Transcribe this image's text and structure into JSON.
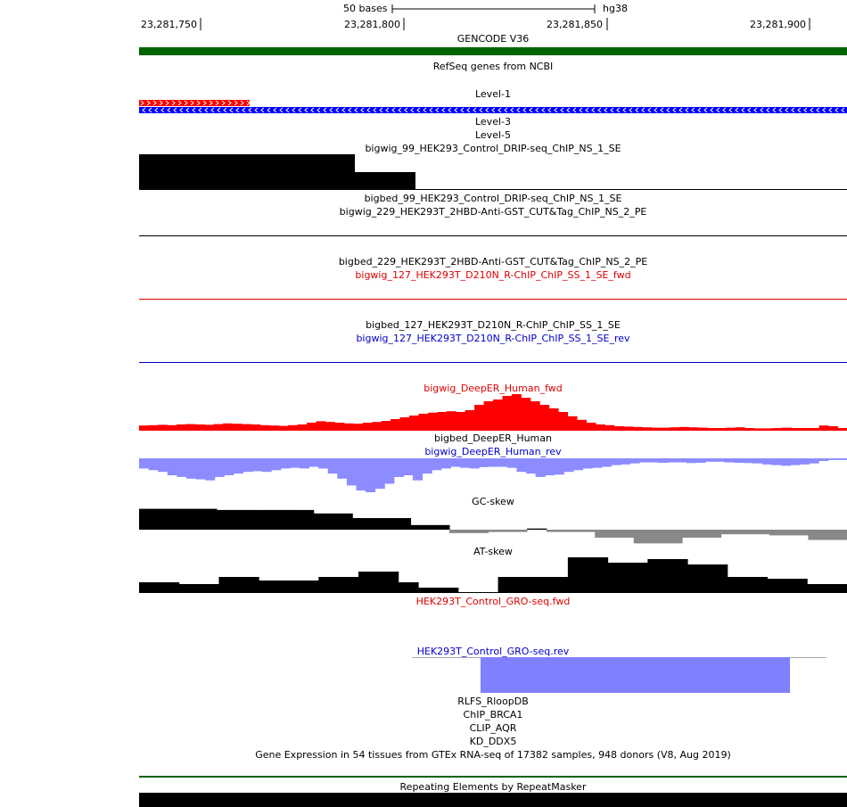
{
  "ruler": {
    "scale_label": "50 bases",
    "assembly": "hg38",
    "positions": [
      "23,281,750",
      "23,281,800",
      "23,281,850",
      "23,281,900"
    ]
  },
  "tracks": {
    "gencode": "GENCODE V36",
    "refseq": "RefSeq genes from NCBI",
    "level1": "Level-1",
    "level3": "Level-3",
    "level5": "Level-5",
    "bigwig_99": "bigwig_99_HEK293_Control_DRIP-seq_ChIP_NS_1_SE",
    "bigbed_99": "bigbed_99_HEK293_Control_DRIP-seq_ChIP_NS_1_SE",
    "bigwig_229": "bigwig_229_HEK293T_2HBD-Anti-GST_CUT&Tag_ChIP_NS_2_PE",
    "bigbed_229": "bigbed_229_HEK293T_2HBD-Anti-GST_CUT&Tag_ChIP_NS_2_PE",
    "bigwig_127_fwd": "bigwig_127_HEK293T_D210N_R-ChIP_ChIP_SS_1_SE_fwd",
    "bigbed_127": "bigbed_127_HEK293T_D210N_R-ChIP_ChIP_SS_1_SE",
    "bigwig_127_rev": "bigwig_127_HEK293T_D210N_R-ChIP_ChIP_SS_1_SE_rev",
    "deeper_fwd": "bigwig_DeepER_Human_fwd",
    "deeper_bed": "bigbed_DeepER_Human",
    "deeper_rev": "bigwig_DeepER_Human_rev",
    "gc_skew": "GC-skew",
    "at_skew": "AT-skew",
    "gro_fwd": "HEK293T_Control_GRO-seq.fwd",
    "gro_rev": "HEK293T_Control_GRO-seq.rev",
    "rlfs": "RLFS_RloopDB",
    "chip_brca1": "ChIP_BRCA1",
    "clip_aqr": "CLIP_AQR",
    "kd_ddx5": "KD_DDX5",
    "gtex": "Gene Expression in 54 tissues from GTEx RNA-seq of 17382 samples, 948 donors (V8, Aug 2019)",
    "repeatmasker": "Repeating Elements by RepeatMasker"
  },
  "colors": {
    "gencode_bar": "#006400",
    "fwd_red": "#ff0000",
    "rev_blue": "#0000cc",
    "deeper_rev_fill": "#8c8cff",
    "gc_neg_gray": "#888888",
    "gro_rev_fill": "#8080ff"
  },
  "signals": {
    "gc_skew": [
      0.9,
      0.9,
      0.9,
      0.9,
      0.9,
      0.9,
      0.9,
      0.9,
      0.85,
      0.85,
      0.85,
      0.85,
      0.85,
      0.85,
      0.85,
      0.85,
      0.85,
      0.85,
      0.7,
      0.7,
      0.7,
      0.7,
      0.5,
      0.5,
      0.5,
      0.5,
      0.5,
      0.5,
      0.2,
      0.2,
      0.2,
      0.2,
      -0.15,
      -0.15,
      -0.15,
      -0.15,
      -0.1,
      -0.1,
      -0.1,
      -0.1,
      0.05,
      0.05,
      -0.1,
      -0.1,
      -0.1,
      -0.1,
      -0.1,
      -0.35,
      -0.35,
      -0.35,
      -0.35,
      -0.6,
      -0.6,
      -0.6,
      -0.6,
      -0.6,
      -0.35,
      -0.35,
      -0.35,
      -0.35,
      -0.2,
      -0.2,
      -0.2,
      -0.2,
      -0.2,
      -0.25,
      -0.25,
      -0.25,
      -0.25,
      -0.45,
      -0.45,
      -0.45,
      -0.45
    ],
    "at_skew": [
      0.3,
      0.3,
      0.3,
      0.3,
      0.25,
      0.25,
      0.25,
      0.25,
      0.45,
      0.45,
      0.45,
      0.45,
      0.35,
      0.35,
      0.35,
      0.35,
      0.35,
      0.35,
      0.45,
      0.45,
      0.45,
      0.45,
      0.6,
      0.6,
      0.6,
      0.6,
      0.3,
      0.3,
      0.15,
      0.15,
      0.15,
      0.15,
      0.0,
      0.0,
      0.0,
      0.0,
      0.45,
      0.45,
      0.45,
      0.45,
      0.45,
      0.45,
      0.45,
      1.0,
      1.0,
      1.0,
      1.0,
      0.85,
      0.85,
      0.85,
      0.85,
      0.95,
      0.95,
      0.95,
      0.95,
      0.8,
      0.8,
      0.8,
      0.8,
      0.45,
      0.45,
      0.45,
      0.45,
      0.4,
      0.4,
      0.4,
      0.4,
      0.25,
      0.25,
      0.25,
      0.25
    ],
    "deeper_fwd": [
      0.12,
      0.13,
      0.14,
      0.13,
      0.15,
      0.16,
      0.15,
      0.14,
      0.16,
      0.18,
      0.17,
      0.16,
      0.15,
      0.13,
      0.12,
      0.11,
      0.13,
      0.15,
      0.2,
      0.24,
      0.22,
      0.2,
      0.18,
      0.17,
      0.2,
      0.22,
      0.25,
      0.3,
      0.35,
      0.4,
      0.45,
      0.48,
      0.5,
      0.52,
      0.5,
      0.55,
      0.7,
      0.8,
      0.85,
      0.95,
      1.0,
      0.9,
      0.8,
      0.7,
      0.6,
      0.5,
      0.38,
      0.28,
      0.2,
      0.15,
      0.13,
      0.1,
      0.09,
      0.08,
      0.07,
      0.06,
      0.06,
      0.07,
      0.08,
      0.07,
      0.06,
      0.05,
      0.05,
      0.06,
      0.07,
      0.05,
      0.04,
      0.04,
      0.05,
      0.06,
      0.05,
      0.05,
      0.05,
      0.12,
      0.1,
      0.05
    ],
    "deeper_rev": [
      0.3,
      0.35,
      0.4,
      0.5,
      0.55,
      0.6,
      0.62,
      0.65,
      0.55,
      0.5,
      0.45,
      0.4,
      0.38,
      0.4,
      0.35,
      0.3,
      0.28,
      0.3,
      0.25,
      0.3,
      0.45,
      0.6,
      0.8,
      0.95,
      1.0,
      0.9,
      0.75,
      0.55,
      0.5,
      0.65,
      0.45,
      0.35,
      0.3,
      0.25,
      0.28,
      0.3,
      0.26,
      0.25,
      0.25,
      0.28,
      0.4,
      0.45,
      0.55,
      0.5,
      0.48,
      0.4,
      0.35,
      0.3,
      0.28,
      0.25,
      0.2,
      0.18,
      0.15,
      0.12,
      0.12,
      0.13,
      0.12,
      0.12,
      0.14,
      0.13,
      0.1,
      0.1,
      0.12,
      0.13,
      0.14,
      0.15,
      0.18,
      0.2,
      0.22,
      0.2,
      0.18,
      0.15,
      0.08,
      0.05,
      0.05
    ]
  }
}
